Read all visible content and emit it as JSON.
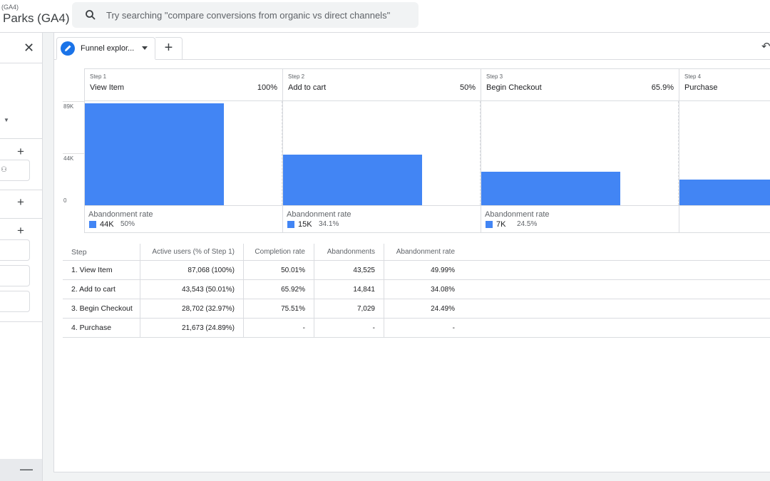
{
  "header": {
    "property_tag": "(GA4)",
    "property_name": "Parks (GA4)",
    "search_placeholder": "Try searching \"compare conversions from organic vs direct channels\""
  },
  "left_panel": {
    "close_icon": "close-icon",
    "plus_icon": "+",
    "minus_icon": "—"
  },
  "tab": {
    "label": "Funnel explor...",
    "add_label": "+"
  },
  "chart_data": {
    "type": "bar",
    "y_ticks": [
      "89K",
      "44K",
      "0"
    ],
    "ylim": [
      0,
      89000
    ],
    "steps": [
      {
        "num": "Step 1",
        "name": "View Item",
        "pct": "100%",
        "value": 87068,
        "abandon_label": "Abandonment rate",
        "abandon_count": "44K",
        "abandon_rate": "50%"
      },
      {
        "num": "Step 2",
        "name": "Add to cart",
        "pct": "50%",
        "value": 43543,
        "abandon_label": "Abandonment rate",
        "abandon_count": "15K",
        "abandon_rate": "34.1%"
      },
      {
        "num": "Step 3",
        "name": "Begin Checkout",
        "pct": "65.9%",
        "value": 28702,
        "abandon_label": "Abandonment rate",
        "abandon_count": "7K",
        "abandon_rate": "24.5%"
      },
      {
        "num": "Step 4",
        "name": "Purchase",
        "pct": "",
        "value": 21673,
        "abandon_label": "",
        "abandon_count": "",
        "abandon_rate": ""
      }
    ],
    "bar_color": "#4285f4"
  },
  "table": {
    "headers": [
      "Step",
      "Active users (% of Step 1)",
      "Completion rate",
      "Abandonments",
      "Abandonment rate"
    ],
    "rows": [
      [
        "1. View Item",
        "87,068 (100%)",
        "50.01%",
        "43,525",
        "49.99%"
      ],
      [
        "2. Add to cart",
        "43,543 (50.01%)",
        "65.92%",
        "14,841",
        "34.08%"
      ],
      [
        "3. Begin Checkout",
        "28,702 (32.97%)",
        "75.51%",
        "7,029",
        "24.49%"
      ],
      [
        "4. Purchase",
        "21,673 (24.89%)",
        "-",
        "-",
        "-"
      ]
    ]
  }
}
